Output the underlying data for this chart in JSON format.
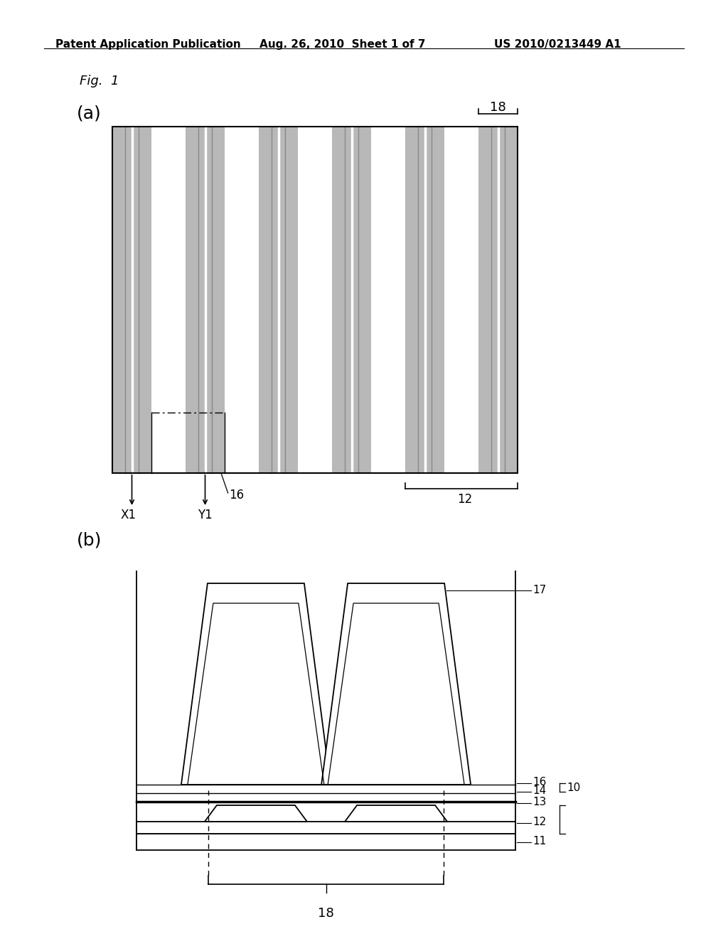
{
  "bg_color": "#ffffff",
  "header_left": "Patent Application Publication",
  "header_mid": "Aug. 26, 2010  Sheet 1 of 7",
  "header_right": "US 2010/0213449 A1",
  "fig_label": "Fig.  1",
  "panel_a_label": "(a)",
  "panel_b_label": "(b)",
  "gray_color": "#b0b0b0",
  "dark_gray": "#606060",
  "black": "#000000",
  "stripe_gray": "#b8b8b8",
  "stripe_inner": "#888888"
}
